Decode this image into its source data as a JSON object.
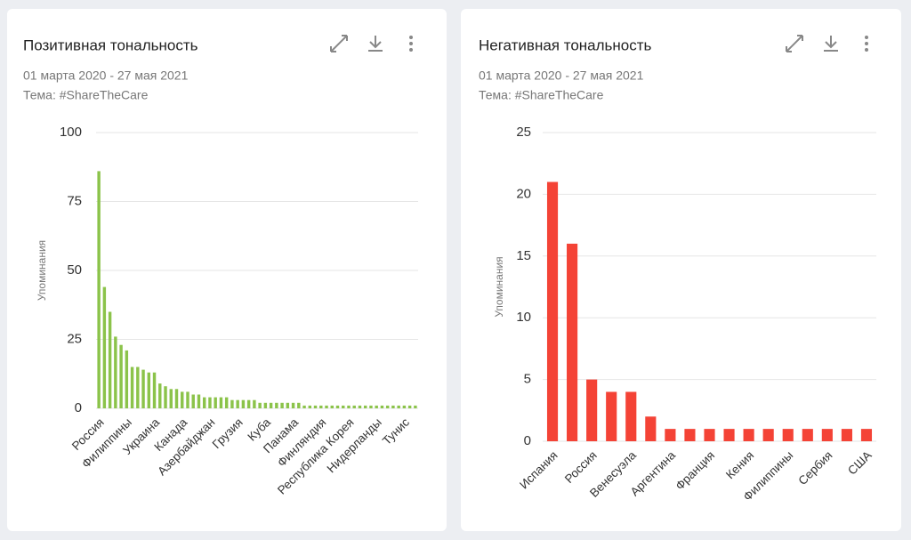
{
  "chart_data": [
    {
      "type": "bar",
      "title": "Позитивная тональность",
      "subtitle": [
        "01 марта 2020 - 27 мая 2021",
        "Тема: #ShareTheCare"
      ],
      "y_label": "Упоминания",
      "color": "#8bc34a",
      "categories": [
        "Россия",
        null,
        null,
        null,
        null,
        "Филиппины",
        null,
        null,
        null,
        null,
        "Украина",
        null,
        null,
        null,
        null,
        "Канада",
        null,
        null,
        null,
        null,
        "Азербайджан",
        null,
        null,
        null,
        null,
        "Грузия",
        null,
        null,
        null,
        null,
        "Куба",
        null,
        null,
        null,
        null,
        "Панама",
        null,
        null,
        null,
        null,
        "Финляндия",
        null,
        null,
        null,
        null,
        "Республика Корея",
        null,
        null,
        null,
        null,
        "Нидерланды",
        null,
        null,
        null,
        null,
        "Тунис",
        null,
        null
      ],
      "values": [
        86,
        44,
        35,
        26,
        23,
        21,
        15,
        15,
        14,
        13,
        13,
        9,
        8,
        7,
        7,
        6,
        6,
        5,
        5,
        4,
        4,
        4,
        4,
        4,
        3,
        3,
        3,
        3,
        3,
        2,
        2,
        2,
        2,
        2,
        2,
        2,
        2,
        1,
        1,
        1,
        1,
        1,
        1,
        1,
        1,
        1,
        1,
        1,
        1,
        1,
        1,
        1,
        1,
        1,
        1,
        1,
        1,
        1
      ],
      "ylim": [
        0,
        100
      ],
      "yticks": [
        0,
        25,
        50,
        75,
        100
      ],
      "grid": true
    },
    {
      "type": "bar",
      "title": "Негативная тональность",
      "subtitle": [
        "01 марта 2020 - 27 мая 2021",
        "Тема: #ShareTheCare"
      ],
      "y_label": "Упоминания",
      "color": "#f44336",
      "categories": [
        "Испания",
        null,
        "Россия",
        null,
        "Венесуэла",
        null,
        "Аргентина",
        null,
        "Франция",
        null,
        "Кения",
        null,
        "Филиппины",
        null,
        "Сербия",
        null,
        "США"
      ],
      "values": [
        21,
        16,
        5,
        4,
        4,
        2,
        1,
        1,
        1,
        1,
        1,
        1,
        1,
        1,
        1,
        1,
        1
      ],
      "ylim": [
        0,
        25
      ],
      "yticks": [
        0,
        5,
        10,
        15,
        20,
        25
      ],
      "grid": true
    }
  ]
}
